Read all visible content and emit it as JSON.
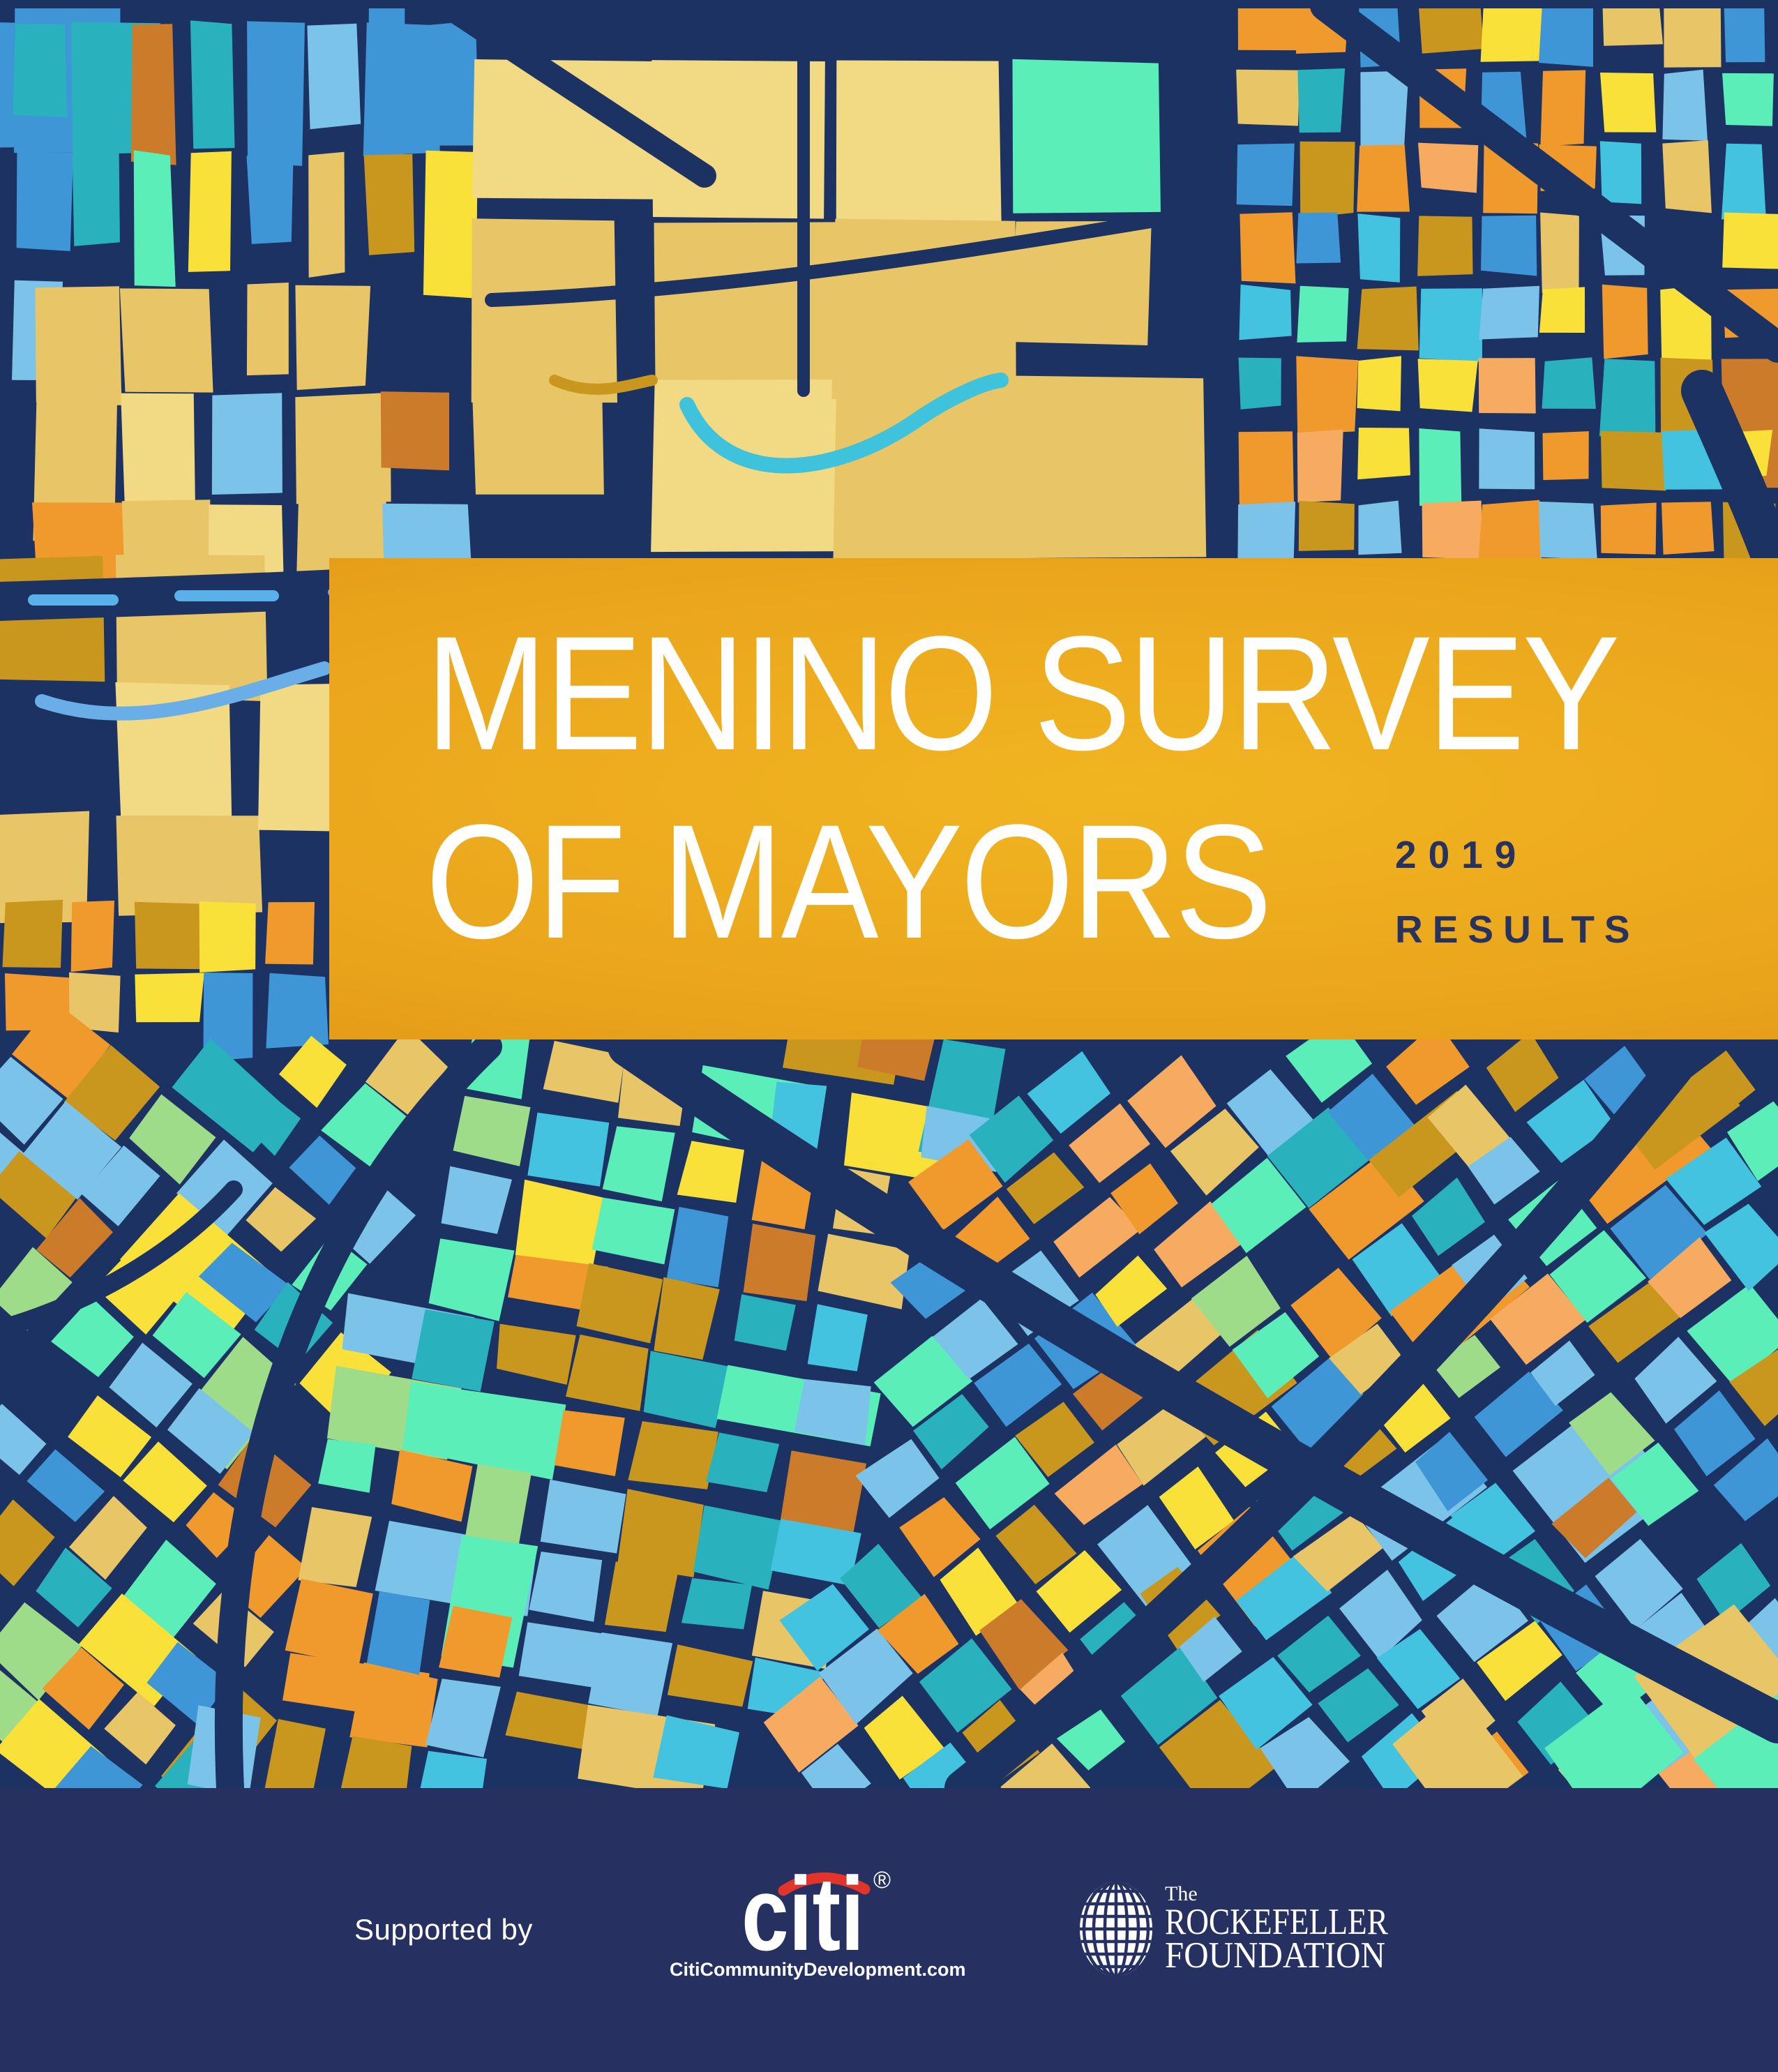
{
  "cover": {
    "title_line1": "MENINO SURVEY",
    "title_line2": "OF MAYORS",
    "year": "2019",
    "results_label": "RESULTS"
  },
  "footer": {
    "supported_by": "Supported by",
    "citi": {
      "wordmark": "citi",
      "registered": "®",
      "url_label": "CitiCommunityDevelopment.com"
    },
    "rockefeller": {
      "the": "The",
      "name_line1": "ROCKEFELLER",
      "name_line2": "FOUNDATION"
    }
  },
  "colors": {
    "street_navy": "#1c3263",
    "footer_navy": "#263161",
    "banner_gold_center": "#f1b521",
    "banner_gold_edge": "#dd8e10",
    "title_white": "#ffffff",
    "year_navy": "#27325f",
    "citi_red": "#e3342b",
    "river_cyan": "#3fc3dc",
    "river_blue": "#69aee6",
    "highway_accent_blue": "#5ab0e8",
    "map_palette": {
      "tan": "#e8c566",
      "yellow": "#f9e13a",
      "gold": "#c9971d",
      "orange": "#f0992d",
      "lightOrange": "#f6ab61",
      "rust": "#cc7b2b",
      "skyBlue": "#7cc3ea",
      "blue": "#3e96d6",
      "teal": "#29b1bd",
      "mint": "#5beeb9",
      "green": "#9fdc8a",
      "aqua": "#43c3df",
      "paleYellow": "#f2d984"
    }
  }
}
